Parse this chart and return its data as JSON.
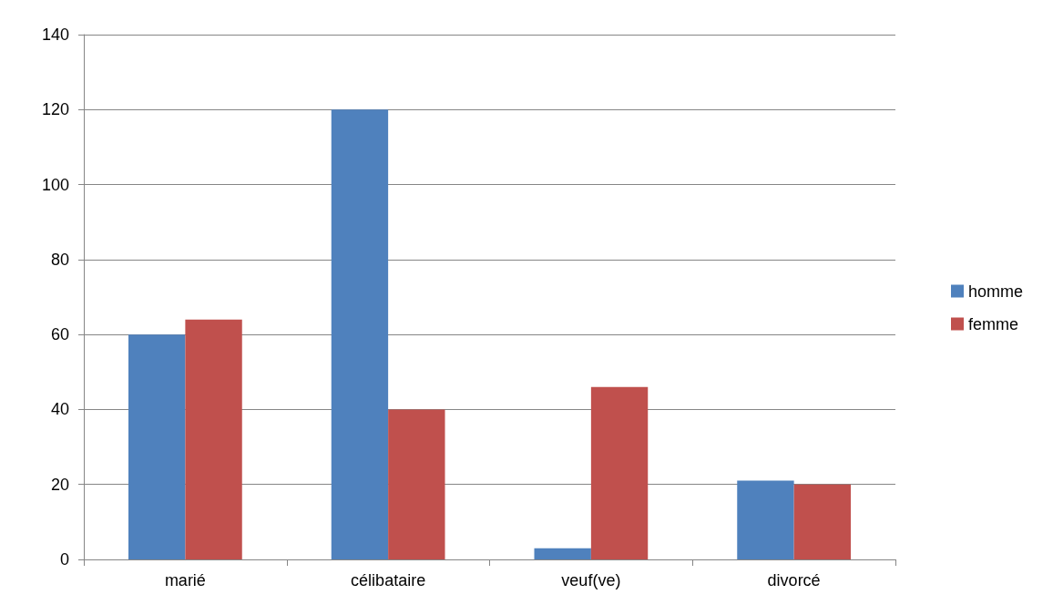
{
  "chart_data": {
    "type": "bar",
    "categories": [
      "marié",
      "célibataire",
      "veuf(ve)",
      "divorcé"
    ],
    "series": [
      {
        "name": "homme",
        "color": "#4f81bd",
        "values": [
          60,
          120,
          3,
          21
        ]
      },
      {
        "name": "femme",
        "color": "#c0504d",
        "values": [
          64,
          40,
          46,
          20
        ]
      }
    ],
    "ylim": [
      0,
      140
    ],
    "yticks": [
      0,
      20,
      40,
      60,
      80,
      100,
      120,
      140
    ],
    "grid": "y",
    "legend": "right"
  }
}
